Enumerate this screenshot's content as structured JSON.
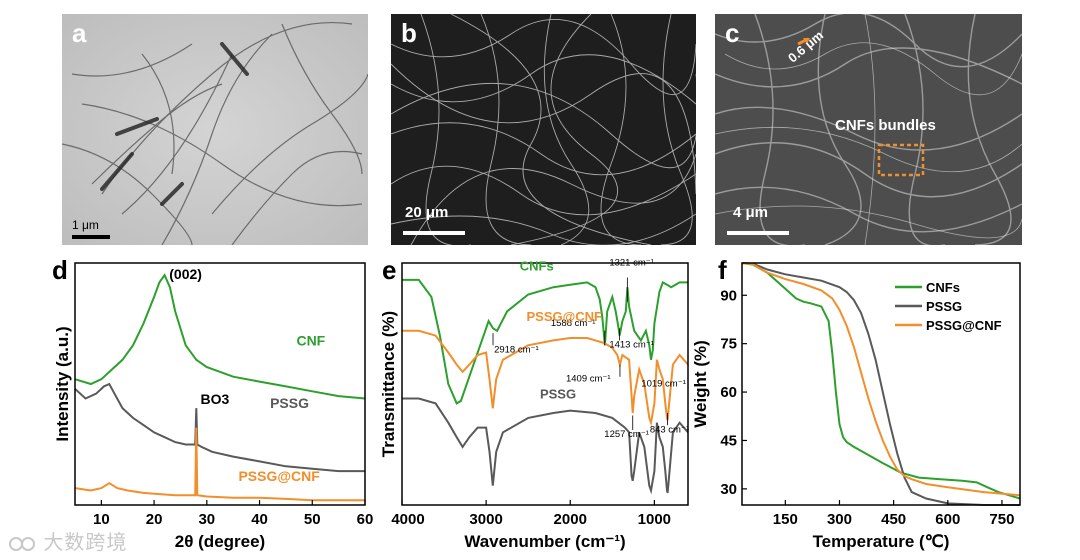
{
  "panels": {
    "a": {
      "label": "a",
      "scale_bar": "1 μm"
    },
    "b": {
      "label": "b",
      "scale_bar": "20 μm"
    },
    "c": {
      "label": "c",
      "scale_bar": "4 μm",
      "dimension": "0.6 μm",
      "annotation": "CNFs bundles"
    },
    "d": {
      "label": "d"
    },
    "e": {
      "label": "e"
    },
    "f": {
      "label": "f"
    }
  },
  "colors": {
    "cnf": "#2ca02c",
    "pssg": "#595959",
    "pssg_cnf": "#f28e2b",
    "orange": "#f28e2b"
  },
  "chart_data": [
    {
      "panel": "d",
      "type": "line",
      "xlabel": "2θ (degree)",
      "ylabel": "Intensity (a.u.)",
      "xlim": [
        5,
        60
      ],
      "xticks": [
        "10",
        "20",
        "30",
        "40",
        "50",
        "60"
      ],
      "yticks": [],
      "annotations": [
        "(002)",
        "BO3"
      ],
      "series": [
        {
          "name": "CNF",
          "color": "#2ca02c",
          "x": [
            5,
            8,
            10,
            12,
            14,
            16,
            18,
            20,
            21,
            22,
            23,
            24,
            26,
            28,
            30,
            35,
            40,
            45,
            50,
            55,
            60
          ],
          "y": [
            0.52,
            0.5,
            0.52,
            0.56,
            0.6,
            0.66,
            0.75,
            0.86,
            0.92,
            0.95,
            0.9,
            0.8,
            0.66,
            0.6,
            0.57,
            0.53,
            0.51,
            0.49,
            0.47,
            0.45,
            0.44
          ]
        },
        {
          "name": "PSSG",
          "color": "#595959",
          "x": [
            5,
            7,
            9,
            10.5,
            11.5,
            12.5,
            14,
            16,
            18,
            20,
            22,
            24,
            26,
            27.8,
            28,
            28.2,
            29,
            31,
            35,
            40,
            45,
            50,
            55,
            60
          ],
          "y": [
            0.48,
            0.44,
            0.46,
            0.49,
            0.5,
            0.46,
            0.4,
            0.36,
            0.33,
            0.3,
            0.28,
            0.26,
            0.25,
            0.25,
            0.4,
            0.25,
            0.24,
            0.22,
            0.2,
            0.18,
            0.16,
            0.15,
            0.14,
            0.14
          ]
        },
        {
          "name": "PSSG@CNF",
          "color": "#f28e2b",
          "x": [
            5,
            8,
            10,
            11.5,
            13,
            15,
            18,
            21,
            24,
            27.8,
            28,
            28.2,
            30,
            35,
            40,
            45,
            50,
            55,
            60
          ],
          "y": [
            0.07,
            0.06,
            0.07,
            0.09,
            0.07,
            0.06,
            0.05,
            0.045,
            0.04,
            0.04,
            0.32,
            0.04,
            0.035,
            0.03,
            0.03,
            0.025,
            0.02,
            0.02,
            0.02
          ]
        }
      ],
      "series_labels": [
        "CNF",
        "PSSG",
        "PSSG@CNF"
      ]
    },
    {
      "panel": "e",
      "type": "line",
      "xlabel": "Wavenumber (cm⁻¹)",
      "ylabel": "Transmittance (%)",
      "xlim": [
        4000,
        600
      ],
      "xticks": [
        "4000",
        "3000",
        "2000",
        "1000"
      ],
      "yticks": [],
      "annotations": [
        "1321 cm⁻¹",
        "2918 cm⁻¹",
        "1588 cm⁻¹",
        "1413 cm⁻¹",
        "1019 cm⁻¹",
        "1409 cm⁻¹",
        "1257 cm⁻¹",
        "843 cm⁻¹"
      ],
      "series": [
        {
          "name": "CNFs",
          "color": "#2ca02c",
          "x": [
            4000,
            3800,
            3650,
            3550,
            3450,
            3350,
            3300,
            3250,
            3150,
            3050,
            2970,
            2918,
            2870,
            2750,
            2500,
            2200,
            2000,
            1800,
            1700,
            1650,
            1620,
            1588,
            1560,
            1500,
            1460,
            1430,
            1413,
            1380,
            1340,
            1321,
            1300,
            1240,
            1160,
            1100,
            1060,
            1040,
            1019,
            1000,
            940,
            900,
            850,
            800,
            700,
            600
          ],
          "y": [
            0.93,
            0.93,
            0.86,
            0.7,
            0.5,
            0.42,
            0.43,
            0.48,
            0.58,
            0.68,
            0.76,
            0.73,
            0.72,
            0.8,
            0.87,
            0.9,
            0.91,
            0.92,
            0.9,
            0.85,
            0.78,
            0.66,
            0.8,
            0.86,
            0.8,
            0.74,
            0.7,
            0.76,
            0.8,
            0.9,
            0.82,
            0.72,
            0.68,
            0.72,
            0.66,
            0.6,
            0.64,
            0.75,
            0.88,
            0.92,
            0.91,
            0.9,
            0.92,
            0.92
          ]
        },
        {
          "name": "PSSG",
          "color": "#595959",
          "x": [
            4000,
            3800,
            3600,
            3450,
            3350,
            3280,
            3200,
            3100,
            3000,
            2960,
            2920,
            2880,
            2800,
            2500,
            2200,
            2000,
            1700,
            1500,
            1350,
            1300,
            1270,
            1257,
            1240,
            1180,
            1120,
            1060,
            1040,
            1000,
            970,
            940,
            900,
            870,
            850,
            843,
            830,
            780,
            700,
            600
          ],
          "y": [
            0.44,
            0.44,
            0.42,
            0.34,
            0.28,
            0.24,
            0.28,
            0.32,
            0.32,
            0.22,
            0.08,
            0.22,
            0.3,
            0.36,
            0.38,
            0.39,
            0.38,
            0.36,
            0.32,
            0.3,
            0.12,
            0.1,
            0.14,
            0.3,
            0.24,
            0.08,
            0.06,
            0.14,
            0.34,
            0.28,
            0.24,
            0.14,
            0.06,
            0.05,
            0.1,
            0.3,
            0.34,
            0.3
          ]
        },
        {
          "name": "PSSG@CNF",
          "color": "#f28e2b",
          "x": [
            4000,
            3800,
            3600,
            3450,
            3350,
            3280,
            3200,
            3100,
            3000,
            2960,
            2920,
            2880,
            2800,
            2500,
            2200,
            2000,
            1800,
            1600,
            1500,
            1440,
            1409,
            1380,
            1300,
            1270,
            1257,
            1240,
            1180,
            1120,
            1060,
            1040,
            1000,
            970,
            940,
            900,
            870,
            850,
            843,
            830,
            780,
            700,
            600
          ],
          "y": [
            0.72,
            0.72,
            0.7,
            0.63,
            0.58,
            0.55,
            0.58,
            0.62,
            0.63,
            0.52,
            0.4,
            0.52,
            0.6,
            0.66,
            0.68,
            0.69,
            0.69,
            0.67,
            0.65,
            0.62,
            0.58,
            0.62,
            0.6,
            0.45,
            0.38,
            0.45,
            0.56,
            0.5,
            0.36,
            0.34,
            0.42,
            0.6,
            0.56,
            0.52,
            0.42,
            0.36,
            0.35,
            0.4,
            0.58,
            0.62,
            0.58
          ]
        }
      ],
      "series_labels": [
        "CNFs",
        "PSSG",
        "PSSG@CNF"
      ]
    },
    {
      "panel": "f",
      "type": "line",
      "xlabel": "Temperature (℃)",
      "ylabel": "Weight (%)",
      "xlim": [
        30,
        800
      ],
      "ylim": [
        25,
        100
      ],
      "xticks": [
        "150",
        "300",
        "450",
        "600",
        "750"
      ],
      "yticks": [
        "30",
        "45",
        "60",
        "75",
        "90"
      ],
      "legend": "right",
      "series": [
        {
          "name": "CNFs",
          "color": "#2ca02c",
          "x": [
            30,
            60,
            100,
            150,
            180,
            200,
            220,
            250,
            270,
            280,
            290,
            300,
            310,
            320,
            340,
            380,
            420,
            470,
            520,
            580,
            640,
            680,
            710,
            740,
            770,
            800
          ],
          "y": [
            100,
            99.5,
            97,
            92,
            89,
            88,
            87.5,
            86.5,
            82,
            72,
            60,
            50,
            46,
            44.5,
            43,
            40.5,
            38,
            35,
            33.5,
            33,
            32.5,
            32,
            30.5,
            29,
            28,
            27
          ]
        },
        {
          "name": "PSSG",
          "color": "#595959",
          "x": [
            30,
            60,
            100,
            150,
            200,
            250,
            300,
            320,
            340,
            360,
            380,
            400,
            420,
            440,
            460,
            480,
            500,
            540,
            600,
            700,
            800
          ],
          "y": [
            100,
            99.8,
            98,
            96.5,
            95.5,
            94.5,
            92.5,
            91,
            88.5,
            84.5,
            78,
            70,
            60,
            50,
            41,
            33.5,
            29,
            27,
            25.5,
            25,
            25
          ]
        },
        {
          "name": "PSSG@CNF",
          "color": "#f28e2b",
          "x": [
            30,
            60,
            100,
            150,
            200,
            250,
            280,
            300,
            320,
            340,
            360,
            380,
            400,
            420,
            440,
            460,
            480,
            500,
            540,
            600,
            700,
            800
          ],
          "y": [
            100,
            99.6,
            97,
            95,
            93.5,
            91.5,
            89,
            85.5,
            80.5,
            74,
            66,
            58,
            51,
            45,
            40,
            36,
            34,
            33,
            31.5,
            30.5,
            29,
            28
          ]
        }
      ]
    }
  ]
}
